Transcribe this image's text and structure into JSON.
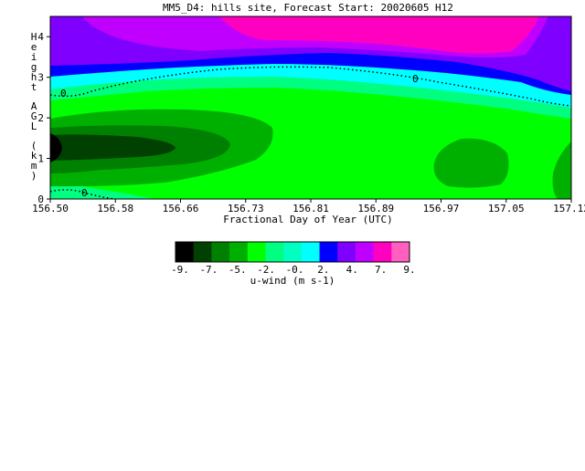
{
  "chart_data": {
    "type": "heatmap",
    "title": "MM5_D4: hills site,  Forecast Start: 20020605 H12",
    "xlabel": "Fractional Day of Year (UTC)",
    "ylabel": "Height AGL (km)",
    "xlim": [
      156.5,
      157.12
    ],
    "ylim": [
      0,
      4.5
    ],
    "x_ticks": [
      "156.50",
      "156.58",
      "156.66",
      "156.73",
      "156.81",
      "156.89",
      "156.97",
      "157.05",
      "157.12"
    ],
    "y_ticks": [
      "0",
      "1",
      "2",
      "3",
      "4"
    ],
    "zero_contour_label": "0",
    "colorbar": {
      "label": "u-wind (m s-1)",
      "tick_labels": [
        "-9.",
        "-7.",
        "-5.",
        "-2.",
        "-0.",
        "2.",
        "4.",
        "7.",
        "9."
      ],
      "colors": [
        "#000000",
        "#004000",
        "#008000",
        "#00b000",
        "#00ff00",
        "#00ff80",
        "#00ffc0",
        "#00ffff",
        "#0000ff",
        "#8000ff",
        "#c000ff",
        "#ff00c0",
        "#ff60c0"
      ]
    },
    "regions": [
      {
        "level": "0 to 2",
        "color": "#00ff00",
        "description": "background 0–2.7 km"
      },
      {
        "level": "-5 to -2",
        "color": "#00b000",
        "description": "band 0.8–1.9 km, 156.50–156.73"
      },
      {
        "level": "-7 to -5",
        "color": "#008000",
        "description": "core 1.0–1.6 km, 156.50–156.66"
      },
      {
        "level": "< -9",
        "color": "#000000",
        "description": "left edge ~1.3 km"
      },
      {
        "level": "-5 to -2",
        "color": "#00b000",
        "description": "blob 0.2–1.5 km, 156.94–157.02"
      },
      {
        "level": "2 to 4",
        "color": "#00ffff",
        "description": "shear layer 2.3–2.9 km"
      },
      {
        "level": "4 to 7",
        "color": "#0000ff",
        "description": "layer 2.8–3.2 km"
      },
      {
        "level": "7 to 9",
        "color": "#8000ff",
        "description": "upper region > 3.2 km"
      },
      {
        "level": "> 9",
        "color": "#ff00c0",
        "description": "top 156.73–157.05, > 3.8 km"
      }
    ]
  }
}
